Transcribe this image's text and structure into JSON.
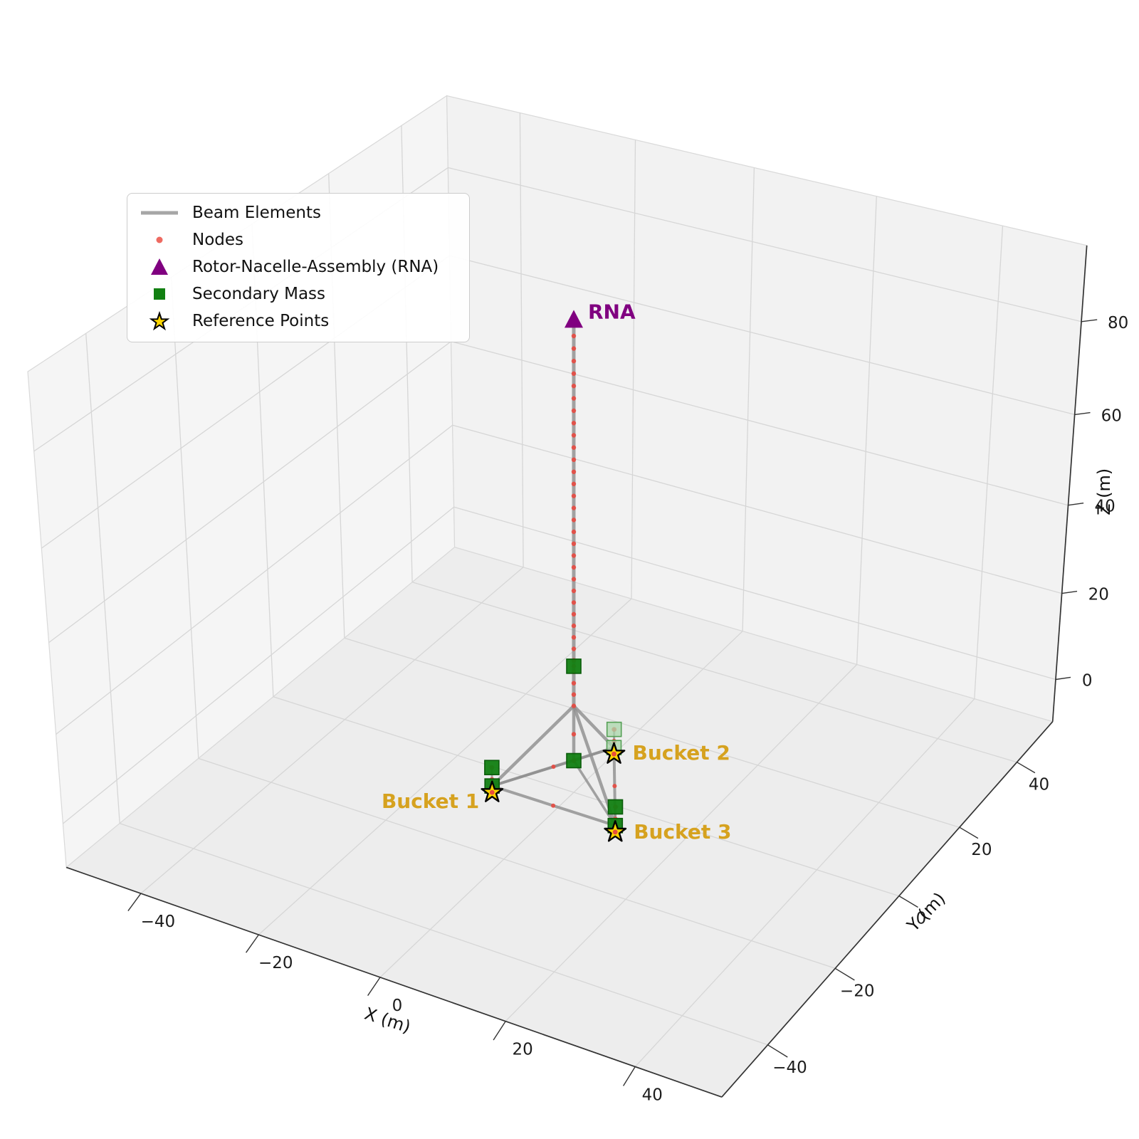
{
  "figure": {
    "background": "#ffffff"
  },
  "legend": {
    "items": [
      {
        "marker": "beam-line-sample",
        "label": "Beam Elements"
      },
      {
        "marker": "node-dot-sample",
        "label": "Nodes"
      },
      {
        "marker": "rna-triangle-sample",
        "label": "Rotor-Nacelle-Assembly (RNA)"
      },
      {
        "marker": "secondary-square-sample",
        "label": "Secondary Mass"
      },
      {
        "marker": "reference-star-sample",
        "label": "Reference Points"
      }
    ]
  },
  "annotations": {
    "rna": "RNA",
    "bucket1": "Bucket 1",
    "bucket2": "Bucket 2",
    "bucket3": "Bucket 3"
  },
  "chart_data": {
    "type": "line",
    "projection": "3d",
    "grid": true,
    "view": {
      "elev_deg": 30,
      "azim_deg": -60
    },
    "axes": {
      "x": {
        "label": "X (m)",
        "ticks": [
          -40,
          -20,
          0,
          20,
          40
        ],
        "range": [
          -53,
          53
        ]
      },
      "y": {
        "label": "Y (m)",
        "ticks": [
          -40,
          -20,
          0,
          20,
          40
        ],
        "range": [
          -53,
          53
        ]
      },
      "z": {
        "label": "Z (m)",
        "ticks": [
          0,
          20,
          40,
          60,
          80
        ],
        "range": [
          -10,
          96
        ]
      }
    },
    "structure": {
      "tower": {
        "x": 0,
        "y": 0,
        "base_z": 10,
        "top_z": 90,
        "node_count": 32
      },
      "rna": {
        "x": 0,
        "y": 0,
        "z": 93
      },
      "junction": {
        "x": 0,
        "y": 0,
        "z": 10
      },
      "center": {
        "x": 0,
        "y": 0,
        "z": -2.6
      },
      "column_mid_node_z": 3.5,
      "tower_secondary_mass_z": 19,
      "buckets": [
        {
          "name": "Bucket 1",
          "x": -10.39,
          "y": -6.0,
          "top_z": -4.2,
          "mid_node_z": -7.0,
          "lid_z": -8.5,
          "ref_z": -10.0,
          "mass_z": [
            -4.2,
            -8.5
          ],
          "faded": false
        },
        {
          "name": "Bucket 2",
          "x": 0.0,
          "y": 12.0,
          "top_z": -4.2,
          "mid_node_z": -7.0,
          "lid_z": -8.5,
          "ref_z": -10.0,
          "mass_z": [
            -4.2,
            -8.5
          ],
          "faded": true
        },
        {
          "name": "Bucket 3",
          "x": 10.39,
          "y": -6.0,
          "top_z": -4.2,
          "mid_node_z": -7.0,
          "lid_z": -8.5,
          "ref_z": -10.0,
          "mass_z": [
            -4.2,
            -8.5
          ],
          "faded": false
        }
      ],
      "beams": [
        {
          "kind": "tower",
          "from": "junction",
          "to": "rna"
        },
        {
          "kind": "column",
          "from": "junction",
          "to": "center"
        },
        {
          "kind": "leg",
          "from": "junction",
          "to": "bucket1-lid"
        },
        {
          "kind": "leg",
          "from": "junction",
          "to": "bucket2-lid"
        },
        {
          "kind": "leg",
          "from": "junction",
          "to": "bucket3-lid"
        },
        {
          "kind": "brace",
          "from": "bucket1-lid",
          "to": "bucket2-lid"
        },
        {
          "kind": "brace",
          "from": "bucket2-lid",
          "to": "bucket3-lid"
        },
        {
          "kind": "brace",
          "from": "bucket1-lid",
          "to": "bucket3-lid"
        },
        {
          "kind": "radial",
          "from": "center",
          "to": "bucket1-lid"
        },
        {
          "kind": "radial",
          "from": "center",
          "to": "bucket2-lid"
        },
        {
          "kind": "radial",
          "from": "center",
          "to": "bucket3-lid"
        },
        {
          "kind": "stub",
          "from": "bucket1-ref",
          "to": "bucket1-top"
        },
        {
          "kind": "stub",
          "from": "bucket2-ref",
          "to": "bucket2-top"
        },
        {
          "kind": "stub",
          "from": "bucket3-ref",
          "to": "bucket3-top"
        }
      ]
    },
    "colors": {
      "beam": "#8f8f8f",
      "node": "#e8473e",
      "rna": "#800080",
      "secondary_fill": "#128012",
      "secondary_edge": "#0a5c0a",
      "secondary_faded_fill": "#aad6aa",
      "secondary_faded_edge": "#55a055",
      "star_fill": "#ffd700",
      "star_edge": "#000000",
      "bucket_label": "#d6a21f",
      "rna_label": "#800080",
      "grid": "#d6d6d6",
      "pane_left": "#f5f5f5",
      "pane_right": "#f2f2f2",
      "pane_floor": "#ededed",
      "axis_edge": "#333333",
      "tick_text": "#1c1c1c"
    }
  }
}
